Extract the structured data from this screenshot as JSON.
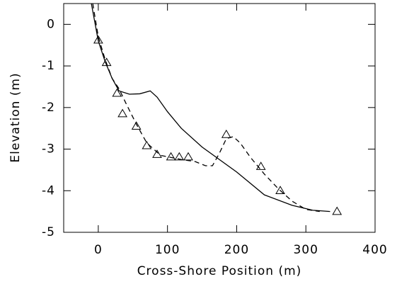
{
  "chart_data": {
    "type": "line",
    "xlabel": "Cross-Shore Position (m)",
    "ylabel": "Elevation (m)",
    "xlim": [
      -50,
      400
    ],
    "xticks": [
      0,
      100,
      200,
      300,
      400
    ],
    "ylim": [
      -5,
      0.5
    ],
    "yticks": [
      0,
      -1,
      -2,
      -3,
      -4,
      -5
    ],
    "series": [
      {
        "color": "#000000",
        "style": "solid",
        "x": [
          -10,
          0,
          10,
          20,
          30,
          45,
          60,
          75,
          85,
          100,
          120,
          150,
          200,
          240,
          280,
          310,
          335
        ],
        "values": [
          0.5,
          -0.4,
          -0.9,
          -1.3,
          -1.6,
          -1.68,
          -1.67,
          -1.6,
          -1.75,
          -2.1,
          -2.5,
          -2.95,
          -3.55,
          -4.1,
          -4.35,
          -4.47,
          -4.5
        ]
      },
      {
        "color": "#000000",
        "style": "dashed",
        "x": [
          -8,
          0,
          10,
          20,
          30,
          40,
          55,
          70,
          90,
          120,
          140,
          155,
          165,
          175,
          185,
          195,
          205,
          220,
          240,
          260,
          280,
          300,
          320
        ],
        "values": [
          0.5,
          -0.3,
          -0.85,
          -1.3,
          -1.55,
          -1.9,
          -2.4,
          -2.85,
          -3.15,
          -3.25,
          -3.3,
          -3.4,
          -3.4,
          -3.1,
          -2.75,
          -2.7,
          -2.85,
          -3.2,
          -3.6,
          -3.95,
          -4.25,
          -4.45,
          -4.5
        ]
      },
      {
        "color": "#000000",
        "style": "triangle",
        "x": [
          0,
          12,
          27,
          35,
          55,
          70,
          85,
          105,
          117,
          130,
          185,
          235,
          263,
          345
        ],
        "values": [
          -0.38,
          -0.92,
          -1.66,
          -2.15,
          -2.45,
          -2.92,
          -3.13,
          -3.19,
          -3.19,
          -3.19,
          -2.65,
          -3.42,
          -4.0,
          -4.5
        ]
      }
    ]
  }
}
